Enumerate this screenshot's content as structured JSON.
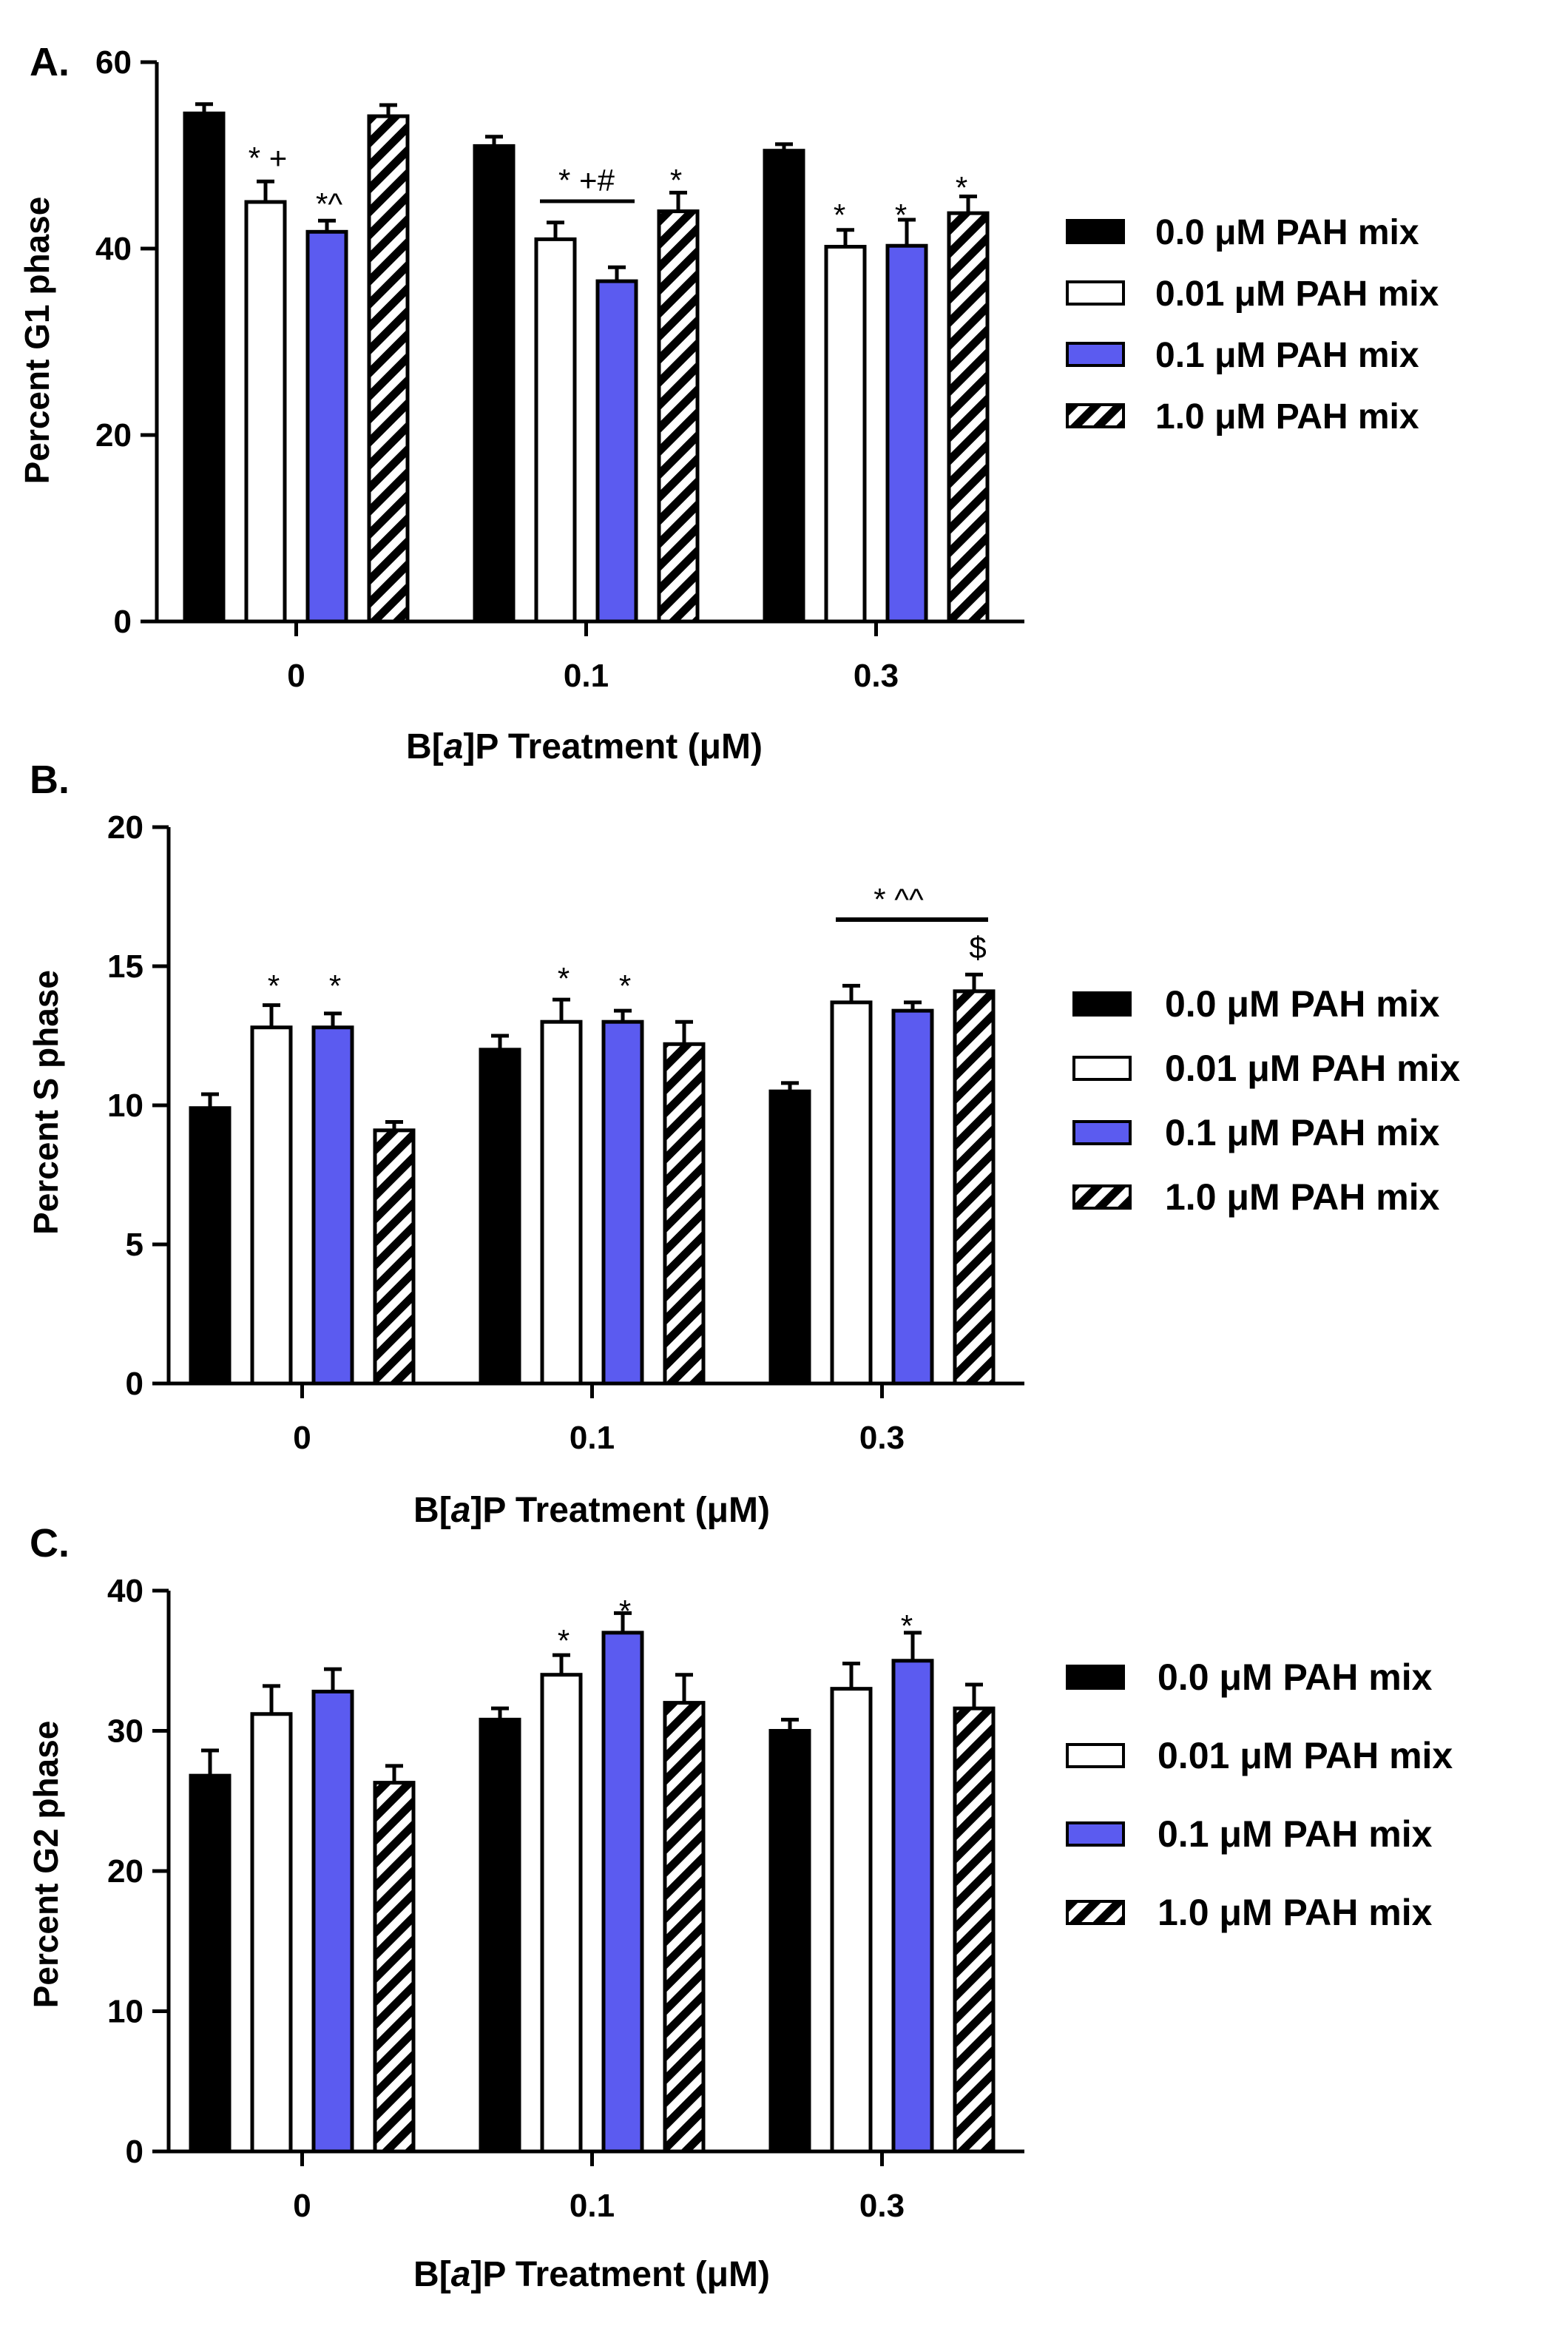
{
  "chart_data": [
    {
      "type": "bar",
      "panel_label": "A.",
      "title": "",
      "xlabel": "B[a]P Treatment (μM)",
      "xlabel_parts": {
        "pre": "B[",
        "italic": "a",
        "post": "]P Treatment (μM)"
      },
      "ylabel": "Percent G1 phase",
      "ylim": [
        0,
        60
      ],
      "yticks": [
        "0",
        "20",
        "40",
        "60"
      ],
      "categories": [
        "0",
        "0.1",
        "0.3"
      ],
      "series": [
        {
          "name": "0.0 μM PAH mix",
          "values": [
            54.5,
            51.0,
            50.5
          ],
          "errors": [
            1.0,
            1.0,
            0.7
          ]
        },
        {
          "name": "0.01 μM PAH mix",
          "values": [
            45.0,
            41.0,
            40.2
          ],
          "errors": [
            2.2,
            1.8,
            1.8
          ]
        },
        {
          "name": "0.1 μM PAH mix",
          "values": [
            41.8,
            36.5,
            40.3
          ],
          "errors": [
            1.2,
            1.5,
            2.8
          ]
        },
        {
          "name": "1.0 μM PAH mix",
          "values": [
            54.2,
            44.0,
            43.8
          ],
          "errors": [
            1.2,
            2.0,
            1.8
          ]
        }
      ],
      "annotations": [
        "* +",
        "*^",
        "* +#",
        "*",
        "*",
        "*",
        "*"
      ],
      "legend": [
        "0.0 μM PAH mix",
        "0.01 μM PAH mix",
        "0.1 μM PAH mix",
        "1.0 μM PAH mix"
      ]
    },
    {
      "type": "bar",
      "panel_label": "B.",
      "title": "",
      "xlabel": "B[a]P Treatment (μM)",
      "xlabel_parts": {
        "pre": "B[",
        "italic": "a",
        "post": "]P Treatment (μM)"
      },
      "ylabel": "Percent S phase",
      "ylim": [
        0,
        20
      ],
      "yticks": [
        "0",
        "5",
        "10",
        "15",
        "20"
      ],
      "categories": [
        "0",
        "0.1",
        "0.3"
      ],
      "series": [
        {
          "name": "0.0 μM PAH mix",
          "values": [
            9.9,
            12.0,
            10.5
          ],
          "errors": [
            0.5,
            0.5,
            0.3
          ]
        },
        {
          "name": "0.01 μM PAH mix",
          "values": [
            12.8,
            13.0,
            13.7
          ],
          "errors": [
            0.8,
            0.8,
            0.6
          ]
        },
        {
          "name": "0.1 μM PAH mix",
          "values": [
            12.8,
            13.0,
            13.4
          ],
          "errors": [
            0.5,
            0.4,
            0.3
          ]
        },
        {
          "name": "1.0 μM PAH mix",
          "values": [
            9.1,
            12.2,
            14.1
          ],
          "errors": [
            0.3,
            0.8,
            0.6
          ]
        }
      ],
      "annotations": [
        "*",
        "*",
        "*",
        "*",
        "* ^^",
        "$"
      ],
      "legend": [
        "0.0 μM PAH mix",
        "0.01 μM PAH mix",
        "0.1 μM PAH mix",
        "1.0 μM PAH mix"
      ]
    },
    {
      "type": "bar",
      "panel_label": "C.",
      "title": "",
      "xlabel": "B[a]P Treatment (μM)",
      "xlabel_parts": {
        "pre": "B[",
        "italic": "a",
        "post": "]P Treatment (μM)"
      },
      "ylabel": "Percent G2 phase",
      "ylim": [
        0,
        40
      ],
      "yticks": [
        "0",
        "10",
        "20",
        "30",
        "40"
      ],
      "categories": [
        "0",
        "0.1",
        "0.3"
      ],
      "series": [
        {
          "name": "0.0 μM PAH mix",
          "values": [
            26.8,
            30.8,
            30.0
          ],
          "errors": [
            1.8,
            0.8,
            0.8
          ]
        },
        {
          "name": "0.01 μM PAH mix",
          "values": [
            31.2,
            34.0,
            33.0
          ],
          "errors": [
            2.0,
            1.4,
            1.8
          ]
        },
        {
          "name": "0.1 μM PAH mix",
          "values": [
            32.8,
            37.0,
            35.0
          ],
          "errors": [
            1.6,
            1.4,
            2.0
          ]
        },
        {
          "name": "1.0 μM PAH mix",
          "values": [
            26.3,
            32.0,
            31.6
          ],
          "errors": [
            1.2,
            2.0,
            1.7
          ]
        }
      ],
      "annotations": [
        "*",
        "*",
        "*"
      ],
      "legend": [
        "0.0 μM PAH mix",
        "0.01 μM PAH mix",
        "0.1 μM PAH mix",
        "1.0 μM PAH mix"
      ]
    }
  ],
  "series_styles": [
    {
      "fill": "#000000",
      "pattern": "solid"
    },
    {
      "fill": "#ffffff",
      "pattern": "solid"
    },
    {
      "fill": "#5b5bf0",
      "pattern": "solid"
    },
    {
      "fill": "#ffffff",
      "pattern": "hatch"
    }
  ],
  "colors": {
    "axis": "#000000",
    "blue": "#5b5bf0"
  }
}
